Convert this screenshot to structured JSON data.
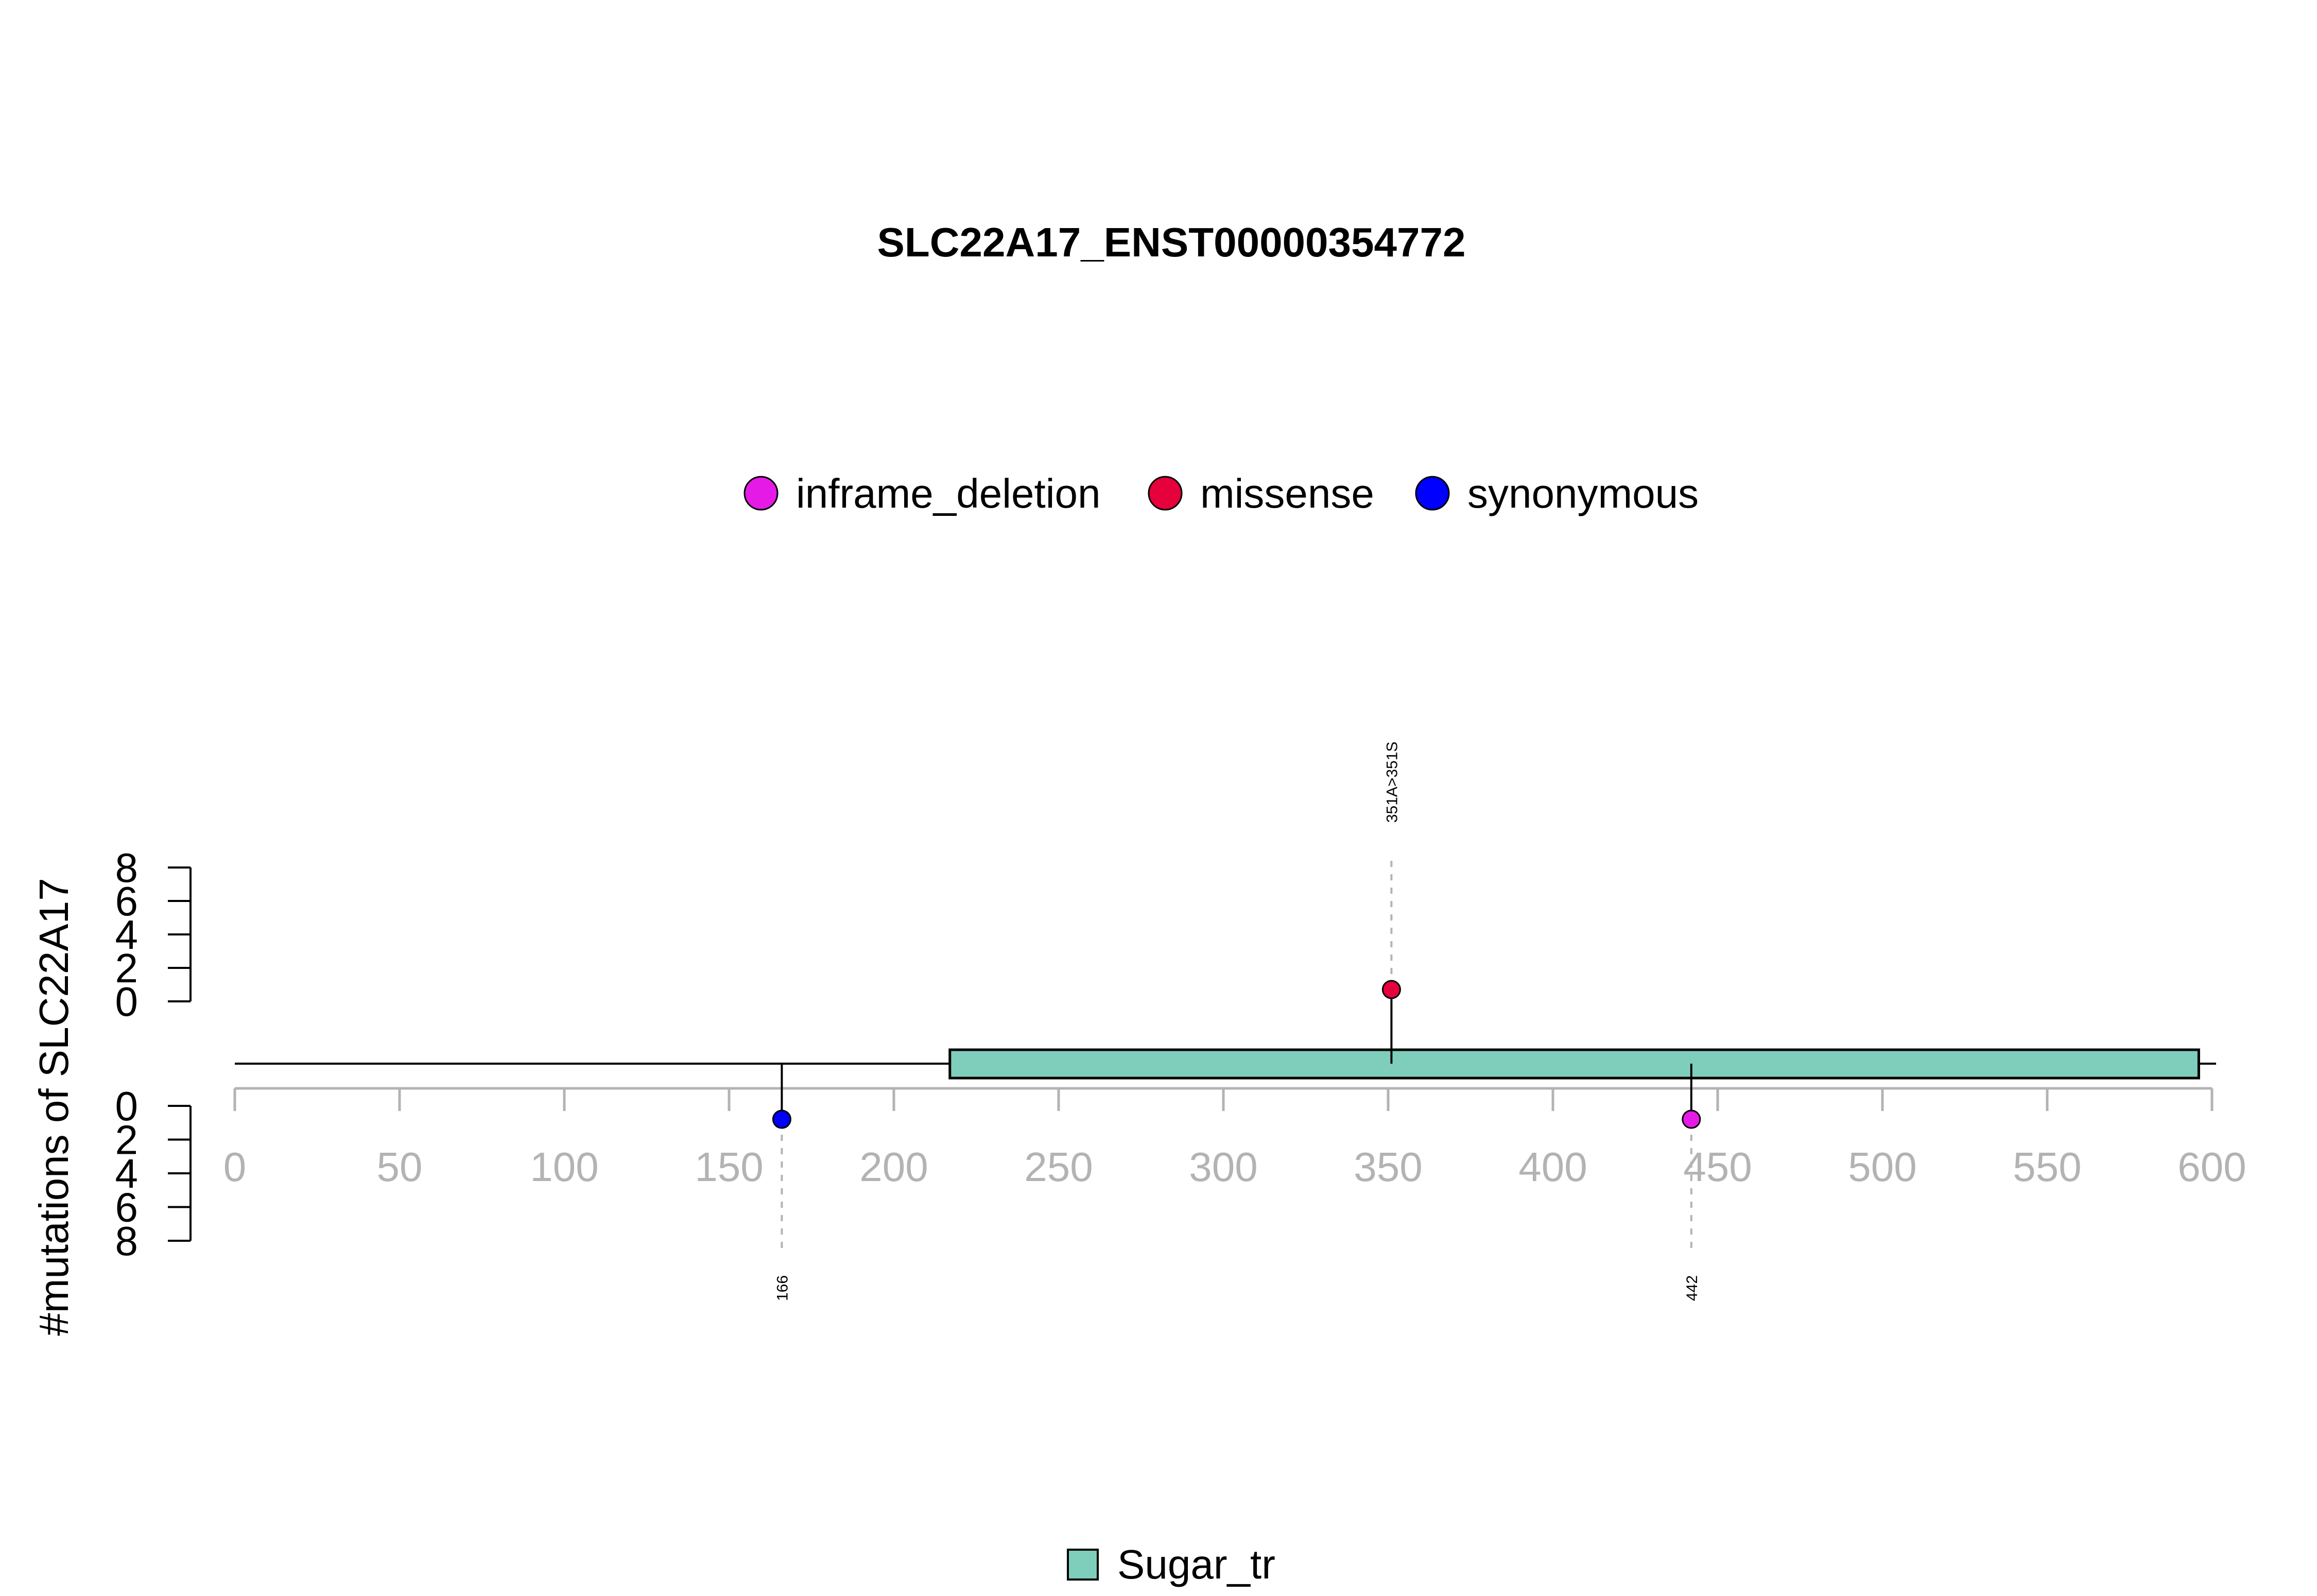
{
  "chart_data": {
    "type": "lollipop",
    "title": "SLC22A17_ENST00000354772",
    "ylabel": "#mutations of SLC22A17",
    "xlim": [
      0,
      600
    ],
    "x_ticks": [
      "0",
      "50",
      "100",
      "150",
      "200",
      "250",
      "300",
      "350",
      "400",
      "450",
      "500",
      "550",
      "600"
    ],
    "y_ticks_top": [
      "8",
      "6",
      "4",
      "2",
      "0"
    ],
    "y_ticks_bottom": [
      "0",
      "2",
      "4",
      "6",
      "8"
    ],
    "legend_mutation_types": [
      {
        "name": "inframe_deletion",
        "color": "#e61ae6"
      },
      {
        "name": "missense",
        "color": "#e6003c"
      },
      {
        "name": "synonymous",
        "color": "#0000ff"
      }
    ],
    "mutations": [
      {
        "label": "351A>351S",
        "position": 351,
        "count": 1,
        "type": "missense",
        "side": "top",
        "color": "#e6003c"
      },
      {
        "label": "166",
        "position": 166,
        "count": 1,
        "type": "synonymous",
        "side": "bottom",
        "color": "#0000ff"
      },
      {
        "label": "442",
        "position": 442,
        "count": 1,
        "type": "inframe_deletion",
        "side": "bottom",
        "color": "#e61ae6"
      }
    ],
    "domains": [
      {
        "name": "Sugar_tr",
        "start": 217,
        "end": 596,
        "color": "#7fcdbb"
      }
    ]
  }
}
